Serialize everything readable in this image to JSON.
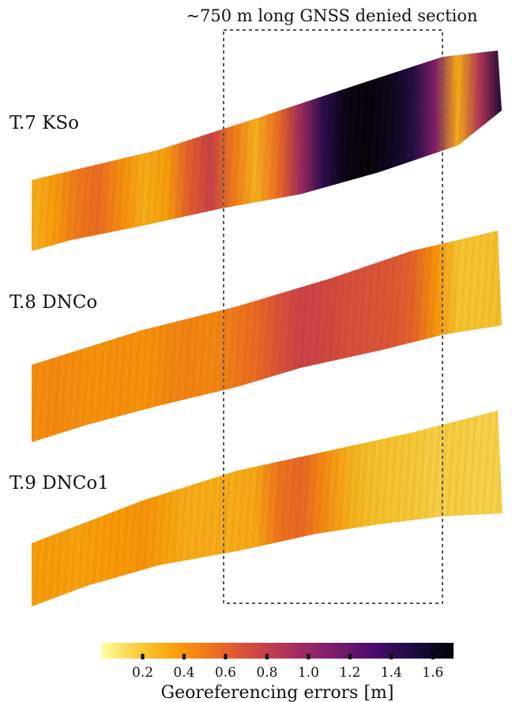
{
  "annotation": {
    "gnss_section": "~750 m long  GNSS denied section"
  },
  "strips": [
    {
      "label": "T.7 KSo",
      "error_profile": [
        0.28,
        0.36,
        0.5,
        0.55,
        0.42,
        0.3,
        0.35,
        0.62,
        0.78,
        0.5,
        0.28,
        0.55,
        0.98,
        1.45,
        1.65,
        1.68,
        1.62,
        1.5,
        1.1,
        0.3,
        0.9,
        1.55
      ]
    },
    {
      "label": "T.8 DNCo",
      "error_profile": [
        0.42,
        0.44,
        0.42,
        0.4,
        0.42,
        0.4,
        0.44,
        0.46,
        0.44,
        0.5,
        0.56,
        0.68,
        0.76,
        0.74,
        0.7,
        0.68,
        0.66,
        0.6,
        0.4,
        0.2,
        0.2,
        0.22
      ]
    },
    {
      "label": "T.9 DNCo1",
      "error_profile": [
        0.36,
        0.36,
        0.34,
        0.36,
        0.38,
        0.4,
        0.34,
        0.3,
        0.3,
        0.3,
        0.32,
        0.52,
        0.58,
        0.44,
        0.3,
        0.22,
        0.2,
        0.18,
        0.16,
        0.16,
        0.15,
        0.15
      ]
    }
  ],
  "colorbar": {
    "title": "Georeferencing errors [m]",
    "ticks": [
      0.2,
      0.4,
      0.6,
      0.8,
      1.0,
      1.2,
      1.4,
      1.6
    ],
    "tick_labels": [
      "0.2",
      "0.4",
      "0.6",
      "0.8",
      "1.0",
      "1.2",
      "1.4",
      "1.6"
    ],
    "range": [
      0.0,
      1.7
    ],
    "colors": [
      "#fcffa4",
      "#f8c932",
      "#fb9b06",
      "#ed6925",
      "#cf4446",
      "#a52c60",
      "#781c6d",
      "#4a0c6b",
      "#1b0c41",
      "#000004"
    ]
  }
}
